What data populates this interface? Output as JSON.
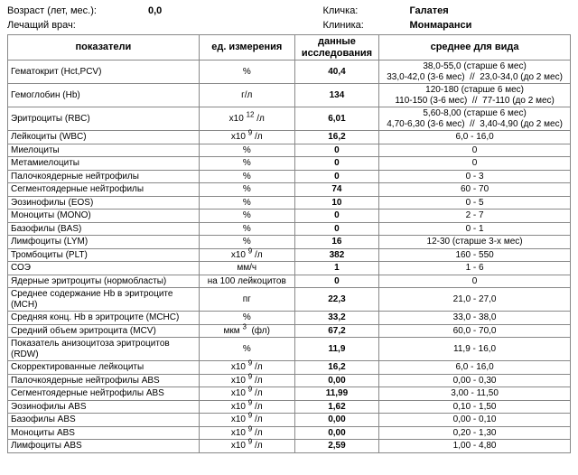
{
  "header": {
    "age_label": "Возраст (лет, мес.):",
    "age_value": "0,0",
    "doctor_label": "Лечащий врач:",
    "nick_label": "Кличка:",
    "nick_value": "Галатея",
    "clinic_label": "Клиника:",
    "clinic_value": "Монмаранси"
  },
  "columns": {
    "c1": "показатели",
    "c2": "ед. измерения",
    "c3": "данные исследования",
    "c4": "среднее для вида"
  },
  "rows": [
    {
      "name": "Гематокрит (Hct,PCV)",
      "unit": "%",
      "value": "40,4",
      "ref": "38,0-55,0 (старше 6 мес)<br>33,0-42,0 (3-6 мес) &nbsp;//&nbsp; 23,0-34,0 (до 2 мес)"
    },
    {
      "name": "Гемоглобин (Hb)",
      "unit": "г/л",
      "value": "134",
      "ref": "120-180 (старше 6 мес)<br>110-150 (3-6 мес) &nbsp;//&nbsp; 77-110 (до 2 мес)"
    },
    {
      "name": "Эритроциты (RBC)",
      "unit": "x10 <sup>12</sup> /л",
      "value": "6,01",
      "ref": "5,60-8,00 (старше 6 мес)<br>4,70-6,30 (3-6 мес) &nbsp;//&nbsp; 3,40-4,90 (до 2 мес)"
    },
    {
      "name": "Лейкоциты (WBC)",
      "unit": "x10 <sup>9</sup> /л",
      "value": "16,2",
      "ref": "6,0 - 16,0"
    },
    {
      "name": "Миелоциты",
      "unit": "%",
      "value": "0",
      "ref": "0"
    },
    {
      "name": "Метамиелоциты",
      "unit": "%",
      "value": "0",
      "ref": "0"
    },
    {
      "name": "Палочкоядерные нейтрофилы",
      "unit": "%",
      "value": "0",
      "ref": "0 - 3"
    },
    {
      "name": "Сегментоядерные нейтрофилы",
      "unit": "%",
      "value": "74",
      "ref": "60 - 70"
    },
    {
      "name": "Эозинофилы (EOS)",
      "unit": "%",
      "value": "10",
      "ref": "0 - 5"
    },
    {
      "name": "Моноциты (MONO)",
      "unit": "%",
      "value": "0",
      "ref": "2 - 7"
    },
    {
      "name": "Базофилы (BAS)",
      "unit": "%",
      "value": "0",
      "ref": "0 - 1"
    },
    {
      "name": "Лимфоциты (LYM)",
      "unit": "%",
      "value": "16",
      "ref": "12-30 (старше 3-х мес)"
    },
    {
      "name": "Тромбоциты (PLT)",
      "unit": "x10 <sup>9</sup> /л",
      "value": "382",
      "ref": "160 - 550"
    },
    {
      "name": "СОЭ",
      "unit": "мм/ч",
      "value": "1",
      "ref": "1 - 6"
    },
    {
      "name": "Ядерные эритроциты (нормобласты)",
      "unit": "на 100 лейкоцитов",
      "value": "0",
      "ref": "0"
    },
    {
      "name": "Среднее содержание Hb в эритроците (MCH)",
      "unit": "пг",
      "value": "22,3",
      "ref": "21,0 - 27,0"
    },
    {
      "name": "Средняя конц. Hb в эритроците (MCHC)",
      "unit": "%",
      "value": "33,2",
      "ref": "33,0 - 38,0"
    },
    {
      "name": "Средний объем эритроцита (MCV)",
      "unit": "мкм <sup>3</sup> &nbsp;(фл)",
      "value": "67,2",
      "ref": "60,0 - 70,0"
    },
    {
      "name": "Показатель анизоцитоза эритроцитов (RDW)",
      "unit": "%",
      "value": "11,9",
      "ref": "11,9 - 16,0"
    },
    {
      "name": "Скорректированные лейкоциты",
      "unit": "x10 <sup>9</sup> /л",
      "value": "16,2",
      "ref": "6,0 - 16,0"
    },
    {
      "name": "Палочкоядерные нейтрофилы ABS",
      "unit": "x10 <sup>9</sup> /л",
      "value": "0,00",
      "ref": "0,00 - 0,30"
    },
    {
      "name": "Сегментоядерные нейтрофилы ABS",
      "unit": "x10 <sup>9</sup> /л",
      "value": "11,99",
      "ref": "3,00 - 11,50"
    },
    {
      "name": "Эозинофилы ABS",
      "unit": "x10 <sup>9</sup> /л",
      "value": "1,62",
      "ref": "0,10 - 1,50"
    },
    {
      "name": "Базофилы ABS",
      "unit": "x10 <sup>9</sup> /л",
      "value": "0,00",
      "ref": "0,00 - 0,10"
    },
    {
      "name": "Моноциты ABS",
      "unit": "x10 <sup>9</sup> /л",
      "value": "0,00",
      "ref": "0,20 - 1,30"
    },
    {
      "name": "Лимфоциты ABS",
      "unit": "x10 <sup>9</sup> /л",
      "value": "2,59",
      "ref": "1,00 - 4,80"
    }
  ]
}
